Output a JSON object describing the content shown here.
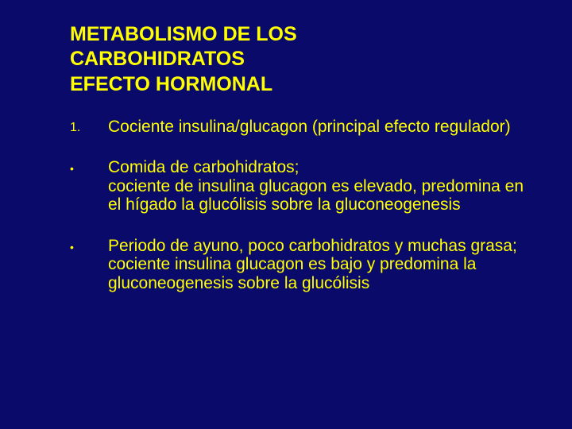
{
  "background_color": "#0a0a6b",
  "text_color": "#ffff00",
  "font_family": "Verdana, Geneva, sans-serif",
  "title": {
    "lines": [
      "METABOLISMO DE LOS",
      "CARBOHIDRATOS",
      "EFECTO HORMONAL"
    ],
    "fontsize": 25,
    "fontweight": "bold"
  },
  "items": [
    {
      "marker": "1.",
      "marker_type": "number",
      "text": "Cociente insulina/glucagon (principal efecto regulador)"
    },
    {
      "marker": "•",
      "marker_type": "bullet",
      "text": "Comida de carbohidratos;\ncociente de insulina glucagon es elevado, predomina en el hígado la glucólisis sobre la gluconeogenesis"
    },
    {
      "marker": "•",
      "marker_type": "bullet",
      "text": "Periodo de ayuno, poco carbohidratos y muchas grasa;\ncociente insulina glucagon es bajo y predomina la gluconeogenesis sobre la glucólisis"
    }
  ],
  "body_fontsize": 21
}
